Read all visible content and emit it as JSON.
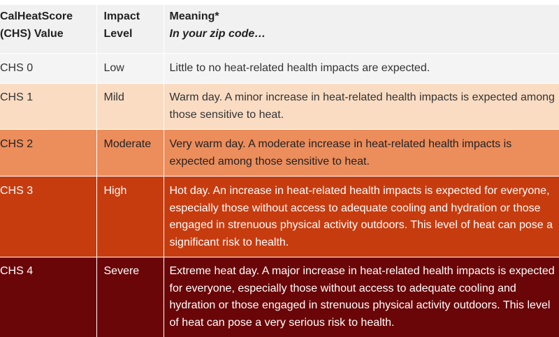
{
  "header": {
    "col1_line1": "CalHeatScore",
    "col1_line2": "(CHS) Value",
    "col2_line1": "Impact",
    "col2_line2": "Level",
    "col3_line1": "Meaning*",
    "col3_line2": "In your zip code…"
  },
  "rows": [
    {
      "value": "CHS 0",
      "level": "Low",
      "meaning": "Little to no heat-related health impacts are expected.",
      "color": "#f4f4f4"
    },
    {
      "value": "CHS 1",
      "level": "Mild",
      "meaning": "Warm day. A minor increase in heat-related health impacts is expected among those sensitive to heat.",
      "color": "#fadcc3"
    },
    {
      "value": "CHS 2",
      "level": "Moderate",
      "meaning": "Very warm day. A moderate increase in heat-related health impacts is expected among those sensitive to heat.",
      "color": "#ec8d5c"
    },
    {
      "value": "CHS 3",
      "level": "High",
      "meaning": "Hot day. An increase in heat-related health impacts is expected for everyone, especially those without access to adequate cooling and hydration or those engaged in strenuous physical activity outdoors. This level of heat can pose a significant risk to health.",
      "color": "#c63c0f"
    },
    {
      "value": "CHS 4",
      "level": "Severe",
      "meaning": "Extreme heat day. A major increase in heat-related health impacts is expected for everyone, especially those without access to adequate cooling and hydration or those engaged in strenuous physical activity outdoors. This level of heat can pose a very serious risk to health.",
      "color": "#6a0608"
    }
  ]
}
